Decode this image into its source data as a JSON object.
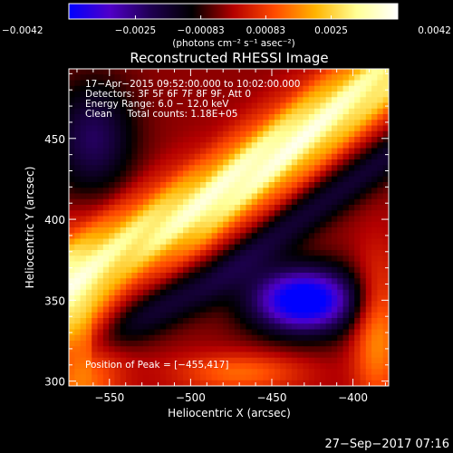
{
  "chart_data": {
    "type": "heatmap",
    "title": "Reconstructed RHESSI Image",
    "xlabel": "Heliocentric X (arcsec)",
    "ylabel": "Heliocentric Y (arcsec)",
    "xlim": [
      -575,
      -378
    ],
    "ylim": [
      297,
      493
    ],
    "x_ticks": [
      -550,
      -500,
      -450,
      -400
    ],
    "y_ticks": [
      300,
      350,
      400,
      450
    ],
    "x_tick_labels": [
      "−550",
      "−500",
      "−450",
      "−400"
    ],
    "y_tick_labels": [
      "300",
      "350",
      "400",
      "450"
    ],
    "colorbar": {
      "range": [
        -0.0042,
        0.0042
      ],
      "ticks": [
        -0.0042,
        -0.0025,
        -0.00083,
        0.00083,
        0.0025,
        0.0042
      ],
      "tick_labels": [
        "−0.0042",
        "−0.0025",
        "−0.00083",
        "0.00083",
        "0.0025",
        "0.0042"
      ],
      "unit_label": "(photons cm⁻² s⁻¹ asec⁻²)",
      "colors": [
        "#0000ff",
        "#5000c8",
        "#1e0050",
        "#000000",
        "#b40000",
        "#ff4a00",
        "#ffb400",
        "#ffff96",
        "#ffffff"
      ]
    },
    "info_lines": [
      "17−Apr−2015 09:52:00.000 to 10:02:00.000",
      "Detectors: 3F 5F 6F 7F 8F 9F, Att 0",
      "Energy Range: 6.0 − 12.0 keV",
      "Clean     Total counts: 1.18E+05"
    ],
    "peak_label": "Position of Peak = [−455,417]",
    "peak_position": [
      -455,
      417
    ],
    "timestamp": "27−Sep−2017 07:16"
  }
}
